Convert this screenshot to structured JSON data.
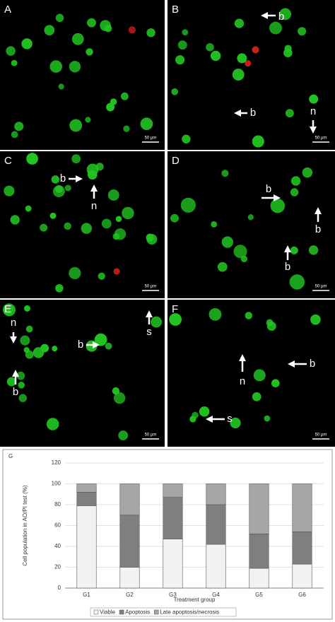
{
  "figure": {
    "panels": [
      {
        "label": "A",
        "scale_bar": "50 µm",
        "annotations": []
      },
      {
        "label": "B",
        "scale_bar": "50 µm",
        "annotations": [
          "b",
          "b",
          "n"
        ]
      },
      {
        "label": "C",
        "scale_bar": "50 µm",
        "annotations": [
          "b",
          "n"
        ]
      },
      {
        "label": "D",
        "scale_bar": "50 µm",
        "annotations": [
          "b",
          "b",
          "b"
        ]
      },
      {
        "label": "E",
        "scale_bar": "50 µm",
        "annotations": [
          "n",
          "b",
          "b",
          "s"
        ]
      },
      {
        "label": "F",
        "scale_bar": "50 µm",
        "annotations": [
          "n",
          "b",
          "s"
        ]
      }
    ]
  },
  "chart_data": {
    "type": "stacked_bar",
    "panel_label": "G",
    "y_label": "Cell population in AO/PI test (%)",
    "x_label": "Treatment group",
    "categories": [
      "G1",
      "G2",
      "G3",
      "G4",
      "G5",
      "G6"
    ],
    "series": [
      {
        "name": "Viable",
        "color": "#f2f2f2",
        "values": [
          79,
          20,
          47,
          42,
          19,
          23
        ]
      },
      {
        "name": "Apoptosis",
        "color": "#7f7f7f",
        "values": [
          13,
          50,
          40,
          38,
          33,
          31
        ]
      },
      {
        "name": "Late apoptosis/necrosis",
        "color": "#a6a6a6",
        "values": [
          8,
          30,
          13,
          20,
          48,
          46
        ]
      }
    ],
    "ylim": [
      0,
      120
    ],
    "yticks": [
      0,
      20,
      40,
      60,
      80,
      100,
      120
    ],
    "grid": true
  }
}
